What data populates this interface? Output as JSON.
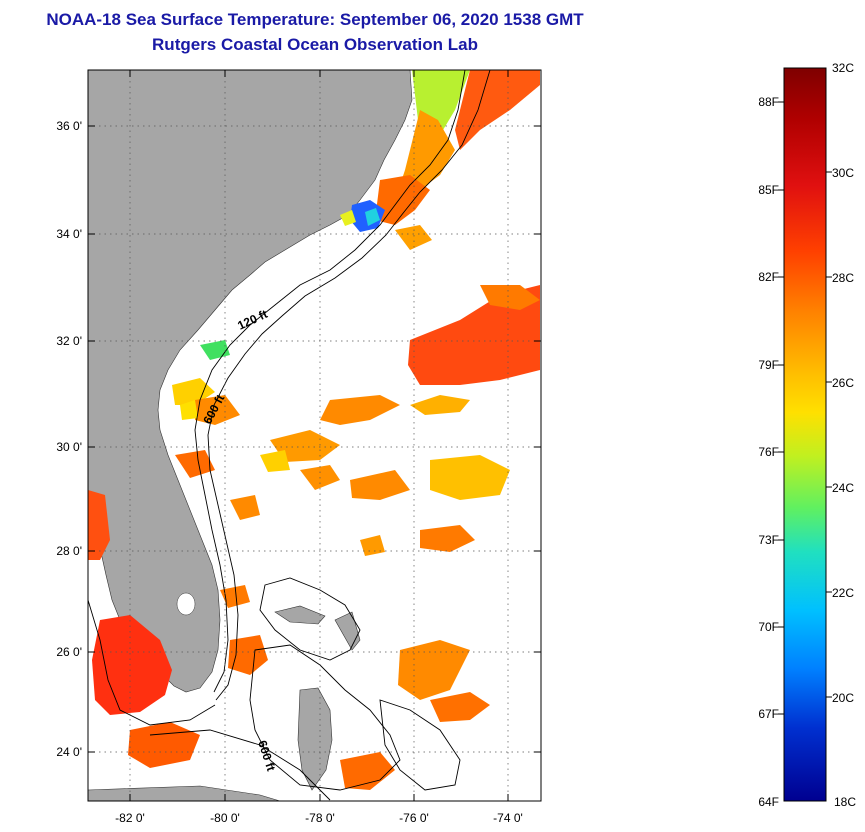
{
  "title": {
    "line1": "NOAA-18 Sea Surface Temperature:  September 06, 2020 1538 GMT",
    "line2": "Rutgers Coastal Ocean Observation Lab"
  },
  "map": {
    "lat_labels": [
      "36 0'",
      "34 0'",
      "32 0'",
      "30 0'",
      "28 0'",
      "26 0'",
      "24 0'"
    ],
    "lon_labels": [
      "-82 0'",
      "-80 0'",
      "-78 0'",
      "-76 0'",
      "-74 0'"
    ],
    "contour_labels": [
      "120 ft",
      "600 ft",
      "600 ft"
    ]
  },
  "colorbar": {
    "celsius_labels": [
      "32C",
      "30C",
      "28C",
      "26C",
      "24C",
      "22C",
      "20C",
      "18C"
    ],
    "fahrenheit_labels": [
      "88F",
      "85F",
      "82F",
      "79F",
      "76F",
      "73F",
      "70F",
      "67F",
      "64F"
    ],
    "colors": [
      "#7f0000",
      "#b00000",
      "#e01010",
      "#ff4000",
      "#ff8000",
      "#ffb000",
      "#ffe000",
      "#c0f020",
      "#60f060",
      "#20e0c0",
      "#00c0ff",
      "#0080ff",
      "#0040e0",
      "#000090"
    ]
  },
  "colors": {
    "land": "#a6a6a6",
    "title": "#1a1aa6"
  }
}
